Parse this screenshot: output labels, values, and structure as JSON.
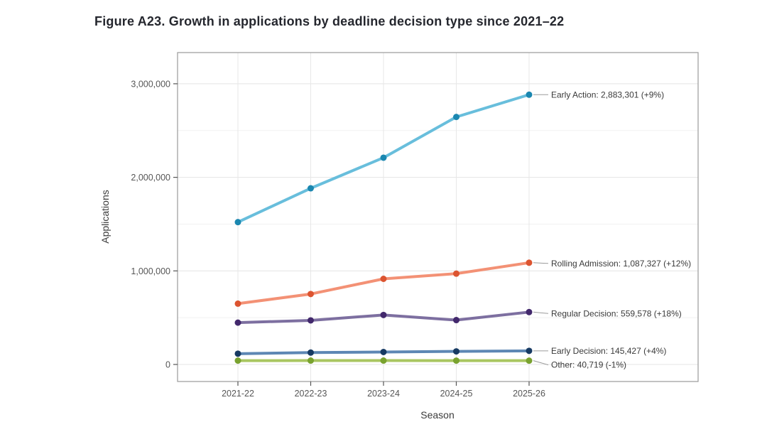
{
  "figure": {
    "title": "Figure A23. Growth in applications by deadline decision type since 2021–22"
  },
  "chart_data": {
    "type": "line",
    "x": [
      "2021-22",
      "2022-23",
      "2023-24",
      "2024-25",
      "2025-26"
    ],
    "xlabel": "Season",
    "ylabel": "Applications",
    "ylim": [
      0,
      3050000
    ],
    "y_major_ticks": [
      0,
      1000000,
      2000000,
      3000000
    ],
    "y_tick_labels": [
      "0",
      "1,000,000",
      "2,000,000",
      "3,000,000"
    ],
    "y_minor_ticks": [
      500000,
      1500000,
      2500000
    ],
    "grid": true,
    "legend_position": "right-end-annotations",
    "series": [
      {
        "name": "Early Action",
        "label": "Early Action: 2,883,301 (+9%)",
        "final_value": 2883301,
        "pct_change": "+9%",
        "values": [
          1521000,
          1883000,
          2210000,
          2645230,
          2883301
        ],
        "line_color": "#68bedc",
        "marker_color": "#1b87b0",
        "label_dy": 0
      },
      {
        "name": "Rolling Admission",
        "label": "Rolling Admission: 1,087,327 (+12%)",
        "final_value": 1087327,
        "pct_change": "+12%",
        "values": [
          650000,
          753000,
          915000,
          970828,
          1087327
        ],
        "line_color": "#f39175",
        "marker_color": "#dc5430",
        "label_dy": 1
      },
      {
        "name": "Regular Decision",
        "label": "Regular Decision: 559,578 (+18%)",
        "final_value": 559578,
        "pct_change": "+18%",
        "values": [
          447000,
          471000,
          529000,
          474219,
          559578
        ],
        "line_color": "#7d6fa0",
        "marker_color": "#42286c",
        "label_dy": 2
      },
      {
        "name": "Early Decision",
        "label": "Early Decision: 145,427 (+4%)",
        "final_value": 145427,
        "pct_change": "+4%",
        "values": [
          115000,
          127000,
          133000,
          139834,
          145427
        ],
        "line_color": "#5d87b4",
        "marker_color": "#173a63",
        "label_dy": 0
      },
      {
        "name": "Other",
        "label": "Other: 40,719 (-1%)",
        "final_value": 40719,
        "pct_change": "-1%",
        "values": [
          41000,
          41500,
          41300,
          41130,
          40719
        ],
        "line_color": "#a9c661",
        "marker_color": "#79a22f",
        "label_dy": 6
      }
    ]
  }
}
